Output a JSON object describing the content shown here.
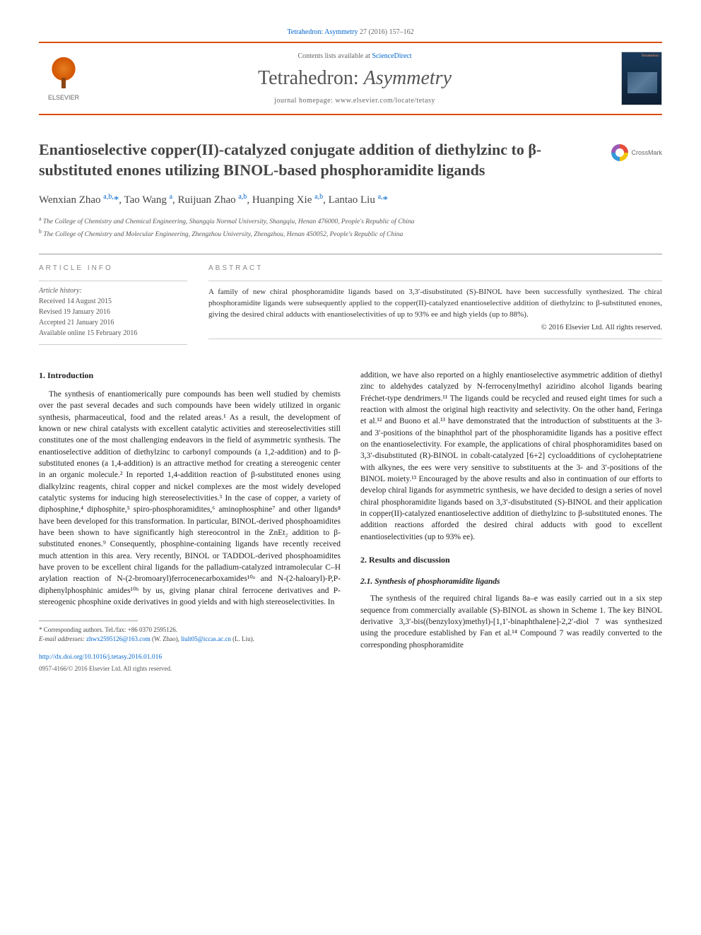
{
  "citation": {
    "journal_link_text": "Tetrahedron: Asymmetry",
    "volume_pages": " 27 (2016) 157–162"
  },
  "header": {
    "publisher": "ELSEVIER",
    "contents_prefix": "Contents lists available at ",
    "contents_link": "ScienceDirect",
    "journal_name_plain": "Tetrahedron: ",
    "journal_name_italic": "Asymmetry",
    "homepage_prefix": "journal homepage: ",
    "homepage_url": "www.elsevier.com/locate/tetasy",
    "cover_label": "Tetrahedron:"
  },
  "article": {
    "title": "Enantioselective copper(II)-catalyzed conjugate addition of diethylzinc to β-substituted enones utilizing BINOL-based phosphoramidite ligands",
    "crossmark": "CrossMark"
  },
  "authors_html": "Wenxian Zhao <sup>a,b,</sup><a href='#'>*</a>, Tao Wang <sup>a</sup>, Ruijuan Zhao <sup>a,b</sup>, Huanping Xie <sup>a,b</sup>, Lantao Liu <sup>a,</sup><a href='#'>*</a>",
  "affiliations": {
    "a": "The College of Chemistry and Chemical Engineering, Shangqiu Normal University, Shangqiu, Henan 476000, People's Republic of China",
    "b": "The College of Chemistry and Molecular Engineering, Zhengzhou University, Zhengzhou, Henan 450052, People's Republic of China"
  },
  "info": {
    "heading": "ARTICLE INFO",
    "history_label": "Article history:",
    "received": "Received 14 August 2015",
    "revised": "Revised 19 January 2016",
    "accepted": "Accepted 21 January 2016",
    "online": "Available online 15 February 2016"
  },
  "abstract": {
    "heading": "ABSTRACT",
    "text": "A family of new chiral phosphoramidite ligands based on 3,3′-disubstituted (S)-BINOL have been successfully synthesized. The chiral phosphoramidite ligands were subsequently applied to the copper(II)-catalyzed enantioselective addition of diethylzinc to β-substituted enones, giving the desired chiral adducts with enantioselectivities of up to 93% ee and high yields (up to 88%).",
    "copyright": "© 2016 Elsevier Ltd. All rights reserved."
  },
  "body": {
    "intro_heading": "1. Introduction",
    "intro_p1": "The synthesis of enantiomerically pure compounds has been well studied by chemists over the past several decades and such compounds have been widely utilized in organic synthesis, pharmaceutical, food and the related areas.¹ As a result, the development of known or new chiral catalysts with excellent catalytic activities and stereoselectivities still constitutes one of the most challenging endeavors in the field of asymmetric synthesis. The enantioselective addition of diethylzinc to carbonyl compounds (a 1,2-addition) and to β-substituted enones (a 1,4-addition) is an attractive method for creating a stereogenic center in an organic molecule.² In reported 1,4-addition reaction of β-substituted enones using dialkylzinc reagents, chiral copper and nickel complexes are the most widely developed catalytic systems for inducing high stereoselectivities.³ In the case of copper, a variety of diphosphine,⁴ diphosphite,⁵ spiro-phosphoramidites,⁶ aminophosphine⁷ and other ligands⁸ have been developed for this transformation. In particular, BINOL-derived phosphoamidites have been shown to have significantly high stereocontrol in the ZnEt₂ addition to β-substituted enones.⁹ Consequently, phosphine-containing ligands have recently received much attention in this area. Very recently, BINOL or TADDOL-derived phosphoamidites have proven to be excellent chiral ligands for the palladium-catalyzed intramolecular C–H arylation reaction of N-(2-bromoaryl)ferrocenecarboxamides¹⁰ᵃ and N-(2-haloaryl)-P,P-diphenylphosphinic amides¹⁰ᵇ by us, giving planar chiral ferrocene derivatives and P-stereogenic phosphine oxide derivatives in good yields and with high stereoselectivities. In",
    "col2_p1": "addition, we have also reported on a highly enantioselective asymmetric addition of diethyl zinc to aldehydes catalyzed by N-ferrocenylmethyl aziridino alcohol ligands bearing Fréchet-type dendrimers.¹¹ The ligands could be recycled and reused eight times for such a reaction with almost the original high reactivity and selectivity. On the other hand, Feringa et al.¹² and Buono et al.¹³ have demonstrated that the introduction of substituents at the 3- and 3′-positions of the binaphthol part of the phosphoramidite ligands has a positive effect on the enantioselectivity. For example, the applications of chiral phosphoramidites based on 3,3′-disubstituted (R)-BINOL in cobalt-catalyzed [6+2] cycloadditions of cycloheptatriene with alkynes, the ees were very sensitive to substituents at the 3- and 3′-positions of the BINOL moiety.¹³ Encouraged by the above results and also in continuation of our efforts to develop chiral ligands for asymmetric synthesis, we have decided to design a series of novel chiral phosphoramidite ligands based on 3,3′-disubstituted (S)-BINOL and their application in copper(II)-catalyzed enantioselective addition of diethylzinc to β-substituted enones. The addition reactions afforded the desired chiral adducts with good to excellent enantioselectivities (up to 93% ee).",
    "results_heading": "2. Results and discussion",
    "synthesis_heading": "2.1. Synthesis of phosphoramidite ligands",
    "synthesis_p1": "The synthesis of the required chiral ligands 8a–e was easily carried out in a six step sequence from commercially available (S)-BINOL as shown in Scheme 1. The key BINOL derivative 3,3′-bis((benzyloxy)methyl)-[1,1′-binaphthalene]-2,2′-diol 7 was synthesized using the procedure established by Fan et al.¹⁴ Compound 7 was readily converted to the corresponding phosphoramidite"
  },
  "footnotes": {
    "corresponding": "* Corresponding authors. Tel./fax: +86 0370 2595126.",
    "email_label": "E-mail addresses: ",
    "email1": "zhwx2595126@163.com",
    "email1_name": " (W. Zhao), ",
    "email2": "liult05@iccas.ac.cn",
    "email2_name": " (L. Liu)."
  },
  "footer": {
    "doi": "http://dx.doi.org/10.1016/j.tetasy.2016.01.016",
    "issn_copyright": "0957-4166/© 2016 Elsevier Ltd. All rights reserved."
  },
  "colors": {
    "accent": "#d94f00",
    "link": "#0066cc"
  }
}
